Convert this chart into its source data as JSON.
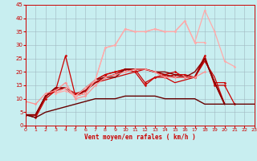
{
  "xlabel": "Vent moyen/en rafales ( km/h )",
  "background_color": "#c8eef0",
  "grid_color": "#a0b8c0",
  "xlim": [
    0,
    23
  ],
  "ylim": [
    0,
    45
  ],
  "yticks": [
    0,
    5,
    10,
    15,
    20,
    25,
    30,
    35,
    40,
    45
  ],
  "xticks": [
    0,
    1,
    2,
    3,
    4,
    5,
    6,
    7,
    8,
    9,
    10,
    11,
    12,
    13,
    14,
    15,
    16,
    17,
    18,
    19,
    20,
    21,
    22,
    23
  ],
  "series": [
    {
      "x": [
        0,
        1,
        2,
        3,
        4,
        5,
        6,
        7,
        8,
        9,
        10,
        11,
        12,
        13,
        14,
        15,
        16,
        17,
        18,
        19,
        20,
        21,
        22,
        23
      ],
      "y": [
        4,
        3,
        10,
        13,
        26,
        11,
        12,
        17,
        19,
        20,
        21,
        20,
        15,
        18,
        18,
        19,
        19,
        18,
        26,
        15,
        15,
        8,
        null,
        null
      ],
      "color": "#cc0000",
      "lw": 0.9,
      "marker": "D",
      "ms": 1.5
    },
    {
      "x": [
        0,
        1,
        2,
        3,
        4,
        5,
        6,
        7,
        8,
        9,
        10,
        11,
        12,
        13,
        14,
        15,
        16,
        17,
        18,
        19,
        20,
        21,
        22,
        23
      ],
      "y": [
        4,
        4,
        11,
        14,
        14,
        12,
        13,
        17,
        19,
        20,
        21,
        21,
        16,
        18,
        19,
        20,
        18,
        18,
        25,
        16,
        16,
        null,
        null,
        null
      ],
      "color": "#cc0000",
      "lw": 0.9,
      "marker": "D",
      "ms": 1.5
    },
    {
      "x": [
        0,
        1,
        2,
        3,
        4,
        5,
        6,
        7,
        8,
        9,
        10,
        11,
        12,
        13,
        14,
        15,
        16,
        17,
        18,
        19,
        20,
        21,
        22,
        23
      ],
      "y": [
        4,
        4,
        11,
        13,
        14,
        11,
        13,
        16,
        17,
        18,
        19,
        20,
        21,
        20,
        18,
        16,
        17,
        18,
        24,
        18,
        8,
        null,
        null,
        null
      ],
      "color": "#cc0000",
      "lw": 0.9,
      "marker": null,
      "ms": 0
    },
    {
      "x": [
        0,
        1,
        2,
        3,
        4,
        5,
        6,
        7,
        8,
        9,
        10,
        11,
        12,
        13,
        14,
        15,
        16,
        17,
        18,
        19,
        20,
        21,
        22,
        23
      ],
      "y": [
        4,
        4,
        11,
        14,
        14,
        11,
        13,
        16,
        18,
        19,
        21,
        21,
        21,
        20,
        19,
        18,
        18,
        18,
        25,
        16,
        8,
        null,
        null,
        null
      ],
      "color": "#aa0000",
      "lw": 1.3,
      "marker": null,
      "ms": 0
    },
    {
      "x": [
        0,
        1,
        2,
        3,
        4,
        5,
        6,
        7,
        8,
        9,
        10,
        11,
        12,
        13,
        14,
        15,
        16,
        17,
        18,
        19,
        20,
        21,
        22,
        23
      ],
      "y": [
        4,
        4,
        11,
        14,
        14,
        11,
        14,
        17,
        18,
        18,
        21,
        21,
        21,
        20,
        20,
        19,
        18,
        20,
        25,
        16,
        8,
        null,
        null,
        null
      ],
      "color": "#880000",
      "lw": 1.0,
      "marker": null,
      "ms": 0
    },
    {
      "x": [
        0,
        1,
        2,
        3,
        4,
        5,
        6,
        7,
        8,
        9,
        10,
        11,
        12,
        13,
        14,
        15,
        16,
        17,
        18,
        19,
        20,
        21,
        22,
        23
      ],
      "y": [
        9,
        8,
        12,
        13,
        16,
        10,
        11,
        15,
        18,
        19,
        20,
        21,
        21,
        20,
        18,
        18,
        18,
        18,
        20,
        null,
        null,
        null,
        null,
        null
      ],
      "color": "#ff9090",
      "lw": 0.9,
      "marker": "D",
      "ms": 1.5
    },
    {
      "x": [
        0,
        1,
        2,
        3,
        4,
        5,
        6,
        7,
        8,
        9,
        10,
        11,
        12,
        13,
        14,
        15,
        16,
        17,
        18,
        19,
        20,
        21,
        22,
        23
      ],
      "y": [
        null,
        null,
        null,
        12,
        13,
        11,
        12,
        17,
        29,
        30,
        36,
        35,
        35,
        36,
        35,
        35,
        39,
        31,
        31,
        null,
        null,
        null,
        null,
        null
      ],
      "color": "#ffaaaa",
      "lw": 0.9,
      "marker": "D",
      "ms": 1.5
    },
    {
      "x": [
        0,
        1,
        2,
        3,
        4,
        5,
        6,
        7,
        8,
        9,
        10,
        11,
        12,
        13,
        14,
        15,
        16,
        17,
        18,
        19,
        20,
        21,
        22,
        23
      ],
      "y": [
        null,
        null,
        null,
        12,
        14,
        11,
        14,
        17,
        29,
        30,
        36,
        35,
        35,
        36,
        35,
        35,
        39,
        31,
        43,
        35,
        24,
        22,
        null,
        null
      ],
      "color": "#ffaaaa",
      "lw": 0.9,
      "marker": "D",
      "ms": 1.5
    },
    {
      "x": [
        0,
        1,
        2,
        3,
        4,
        5,
        6,
        7,
        8,
        9,
        10,
        11,
        12,
        13,
        14,
        15,
        16,
        17,
        18,
        19,
        20,
        21,
        22,
        23
      ],
      "y": [
        4,
        3,
        5,
        6,
        7,
        8,
        9,
        10,
        10,
        10,
        11,
        11,
        11,
        11,
        10,
        10,
        10,
        10,
        8,
        8,
        8,
        8,
        8,
        8
      ],
      "color": "#660000",
      "lw": 1.0,
      "marker": null,
      "ms": 0
    }
  ]
}
